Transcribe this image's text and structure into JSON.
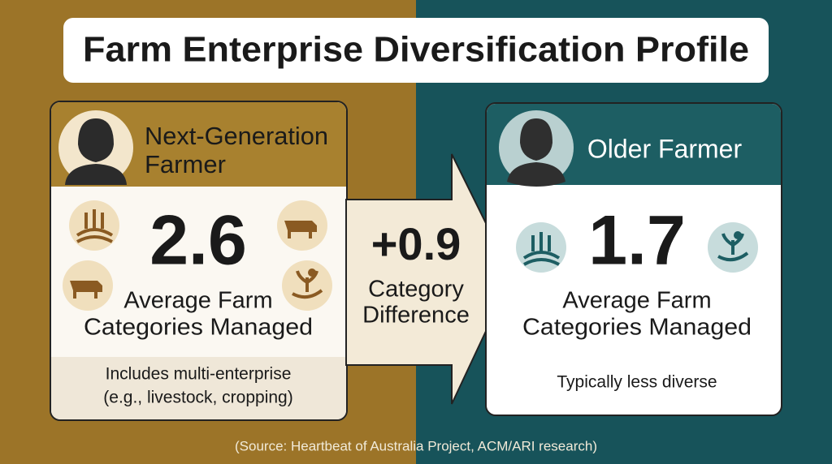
{
  "title": "Farm Enterprise Diversification Profile",
  "left_card": {
    "name": [
      "Next-Generation",
      "Farmer"
    ],
    "value": "2.6",
    "label": [
      "Average Farm",
      "Categories Managed"
    ],
    "note": [
      "Includes multi-enterprise",
      "(e.g., livestock, cropping)"
    ]
  },
  "difference": {
    "value": "+0.9",
    "label": [
      "Category",
      "Difference"
    ]
  },
  "right_card": {
    "name": [
      "Older Farmer"
    ],
    "value": "1.7",
    "label": [
      "Average Farm",
      "Categories Managed"
    ],
    "note": [
      "Typically less diverse"
    ]
  },
  "source": "(Source: Heartbeat of Australia Project, ACM/ARI research)"
}
